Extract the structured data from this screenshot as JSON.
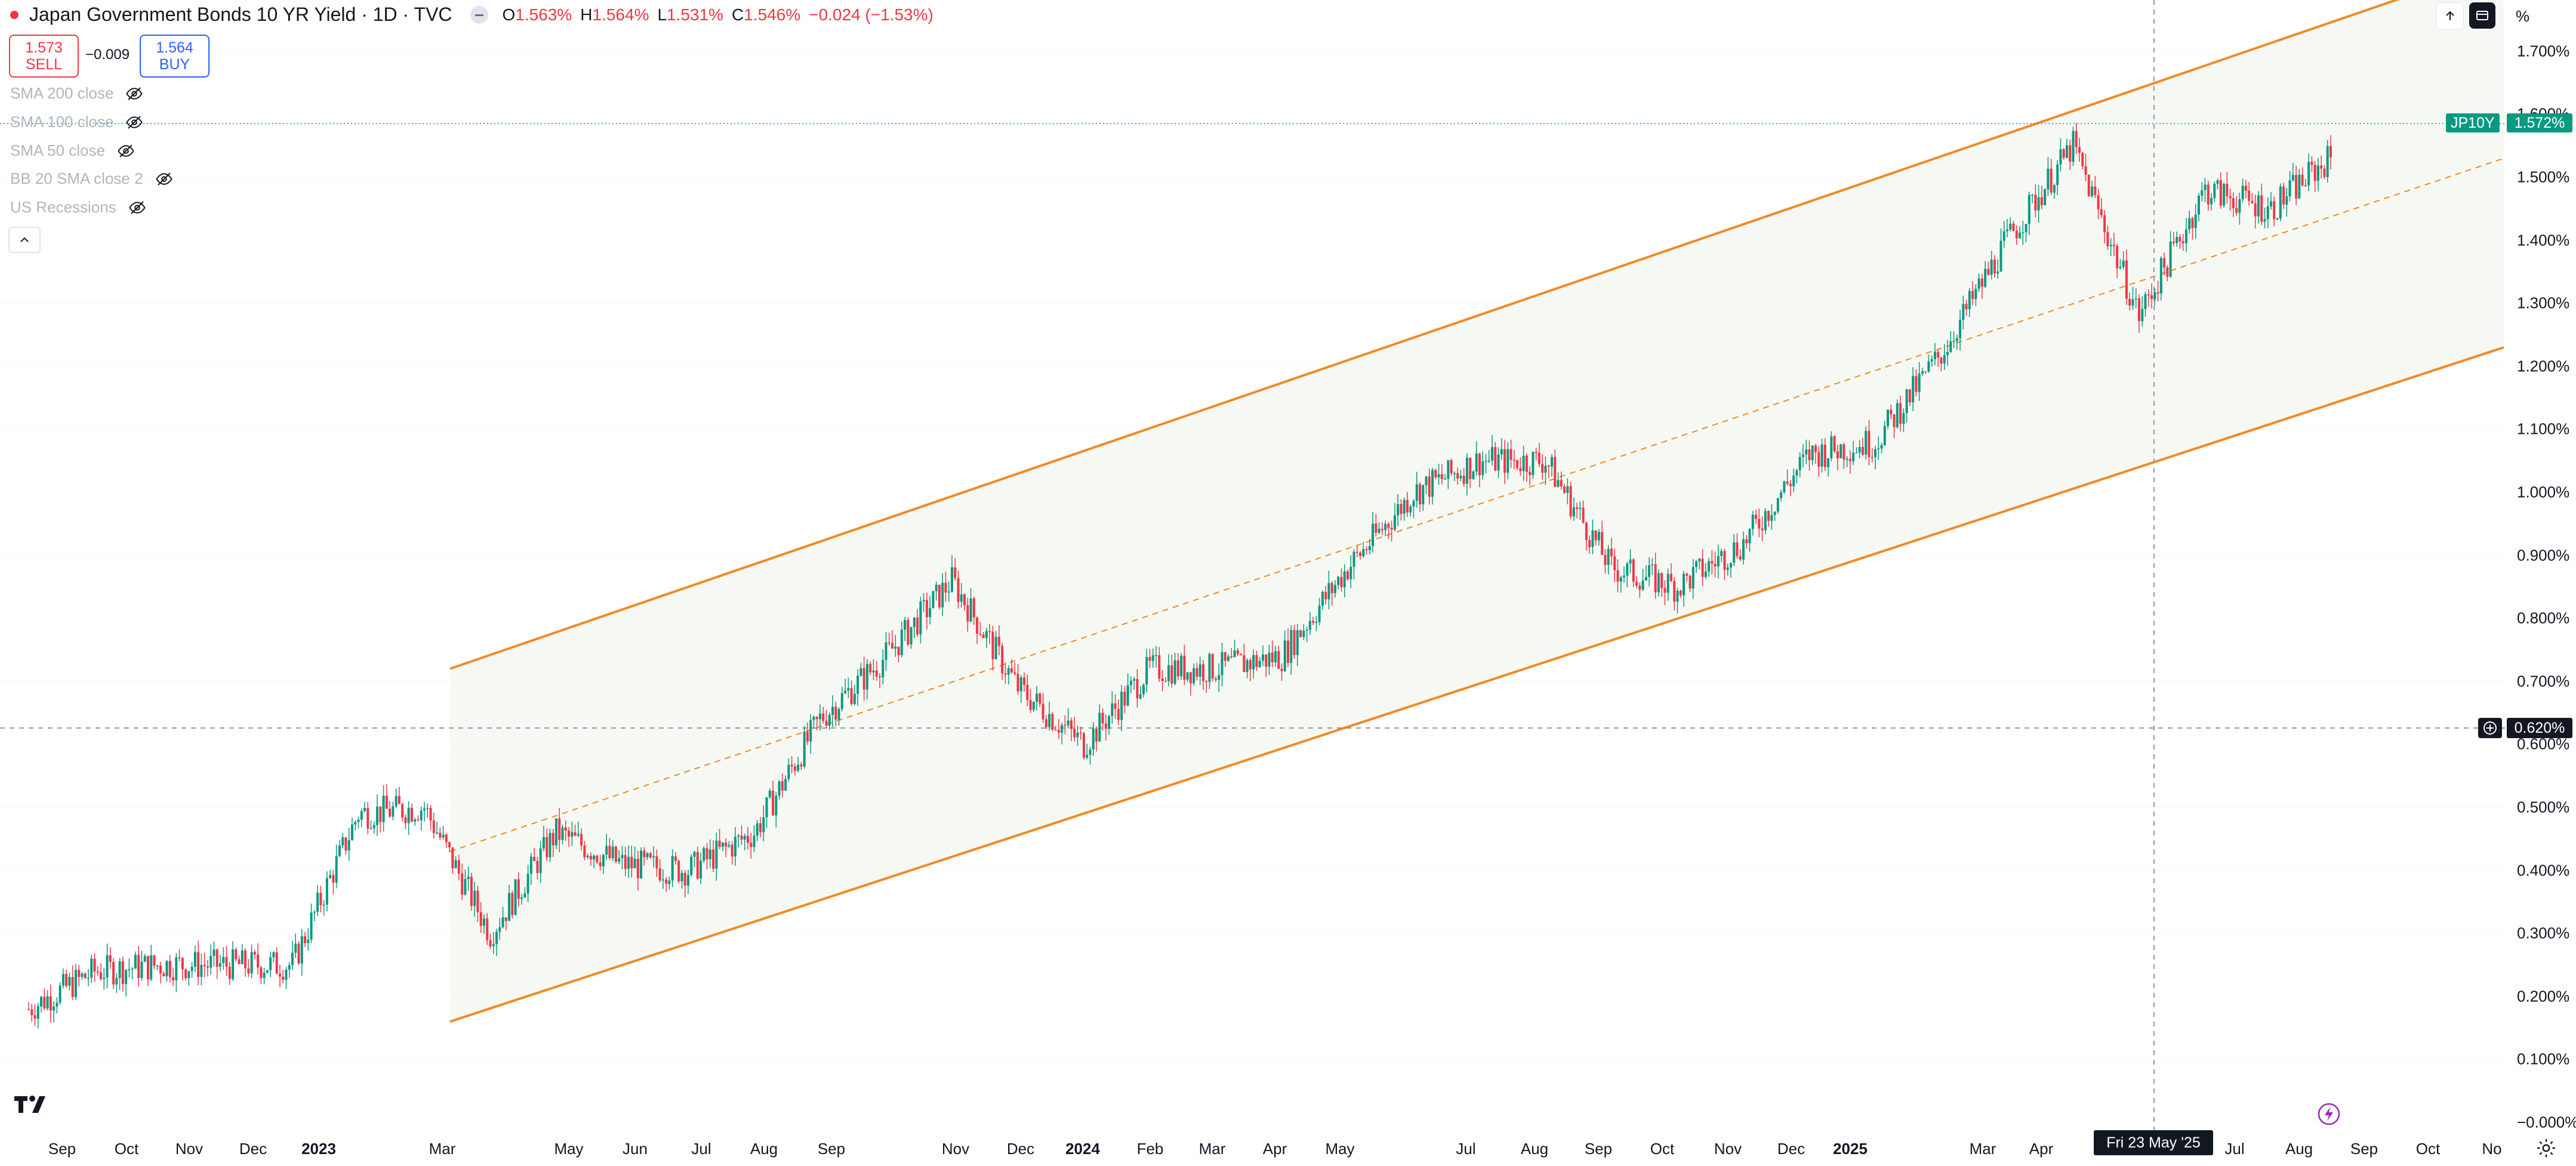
{
  "header": {
    "title": "Japan Government Bonds 10 YR Yield · 1D · TVC",
    "o_label": "O",
    "o_value": "1.563%",
    "h_label": "H",
    "h_value": "1.564%",
    "l_label": "L",
    "l_value": "1.531%",
    "c_label": "C",
    "c_value": "1.546%",
    "change": "−0.024 (−1.53%)"
  },
  "trade": {
    "sell_price": "1.573",
    "sell_label": "SELL",
    "spread": "−0.009",
    "buy_price": "1.564",
    "buy_label": "BUY"
  },
  "indicators": [
    {
      "label": "SMA 200 close"
    },
    {
      "label": "SMA 100 close"
    },
    {
      "label": "SMA 50 close"
    },
    {
      "label": "BB 20 SMA close 2"
    },
    {
      "label": "US Recessions"
    }
  ],
  "price_axis": {
    "unit": "%",
    "labels": [
      "1.700%",
      "1.600%",
      "1.500%",
      "1.400%",
      "1.300%",
      "1.200%",
      "1.100%",
      "1.000%",
      "0.900%",
      "0.800%",
      "0.700%",
      "0.600%",
      "0.500%",
      "0.400%",
      "0.300%",
      "0.200%",
      "0.100%",
      "−0.000%"
    ]
  },
  "time_axis": {
    "labels": [
      {
        "t": "Sep",
        "bold": false
      },
      {
        "t": "Oct",
        "bold": false
      },
      {
        "t": "Nov",
        "bold": false
      },
      {
        "t": "Dec",
        "bold": false
      },
      {
        "t": "2023",
        "bold": true
      },
      {
        "t": "Mar",
        "bold": false
      },
      {
        "t": "May",
        "bold": false
      },
      {
        "t": "Jun",
        "bold": false
      },
      {
        "t": "Jul",
        "bold": false
      },
      {
        "t": "Aug",
        "bold": false
      },
      {
        "t": "Sep",
        "bold": false
      },
      {
        "t": "Nov",
        "bold": false
      },
      {
        "t": "Dec",
        "bold": false
      },
      {
        "t": "2024",
        "bold": true
      },
      {
        "t": "Feb",
        "bold": false
      },
      {
        "t": "Mar",
        "bold": false
      },
      {
        "t": "Apr",
        "bold": false
      },
      {
        "t": "May",
        "bold": false
      },
      {
        "t": "Jul",
        "bold": false
      },
      {
        "t": "Aug",
        "bold": false
      },
      {
        "t": "Sep",
        "bold": false
      },
      {
        "t": "Oct",
        "bold": false
      },
      {
        "t": "Nov",
        "bold": false
      },
      {
        "t": "Dec",
        "bold": false
      },
      {
        "t": "2025",
        "bold": true
      },
      {
        "t": "Mar",
        "bold": false
      },
      {
        "t": "Apr",
        "bold": false
      },
      {
        "t": "Jul",
        "bold": false
      },
      {
        "t": "Aug",
        "bold": false
      },
      {
        "t": "Sep",
        "bold": false
      },
      {
        "t": "Oct",
        "bold": false
      },
      {
        "t": "No",
        "bold": false
      }
    ]
  },
  "last_price": {
    "symbol": "JP10Y",
    "value": "1.572%"
  },
  "crosshair": {
    "price": "0.620%",
    "time": "Fri 23 May '25"
  },
  "colors": {
    "up": "#089981",
    "down": "#f23645",
    "channel": "#f08a24",
    "channel_fill": "#f6f9f3",
    "accent_green": "#089981"
  },
  "icons": [
    "eye-off-icon",
    "chevron-up-icon",
    "arrow-up-icon",
    "context-menu-icon",
    "tradingview-logo-icon",
    "lightning-icon",
    "settings-icon",
    "crosshair-plus-icon"
  ],
  "chart_data": {
    "type": "candlestick",
    "ylim": [
      0.0,
      1.7
    ],
    "channel": {
      "start": "Mar 2023",
      "end": "Aug 2025",
      "upper": [
        0.72,
        1.84
      ],
      "middle": [
        0.43,
        1.53
      ],
      "lower": [
        0.16,
        1.23
      ]
    },
    "series": [
      {
        "x": [
          "Aug 2022",
          "Sep 2022",
          "Oct 2022",
          "Nov 2022",
          "Dec 2022",
          "Jan 2023",
          "Feb 2023",
          "Mar 2023",
          "Apr 2023",
          "May 2023",
          "Jun 2023",
          "Jul 2023",
          "Aug 2023",
          "Sep 2023",
          "Oct 2023",
          "Nov 2023",
          "Dec 2023",
          "Jan 2024",
          "Feb 2024",
          "Mar 2024",
          "Apr 2024",
          "May 2024",
          "Jun 2024",
          "Jul 2024",
          "Aug 2024",
          "Sep 2024",
          "Oct 2024",
          "Nov 2024",
          "Dec 2024",
          "Jan 2025",
          "Feb 2025",
          "Mar 2025",
          "Apr 2025",
          "May 2025",
          "Jun 2025",
          "Jul 2025",
          "Aug 2025"
        ],
        "values": [
          0.18,
          0.24,
          0.25,
          0.25,
          0.25,
          0.49,
          0.5,
          0.3,
          0.46,
          0.41,
          0.4,
          0.46,
          0.64,
          0.74,
          0.86,
          0.69,
          0.6,
          0.72,
          0.72,
          0.74,
          0.88,
          1.0,
          1.05,
          1.05,
          0.88,
          0.85,
          0.92,
          1.06,
          1.08,
          1.22,
          1.4,
          1.55,
          1.28,
          1.48,
          1.45,
          1.54,
          1.55
        ]
      }
    ]
  }
}
